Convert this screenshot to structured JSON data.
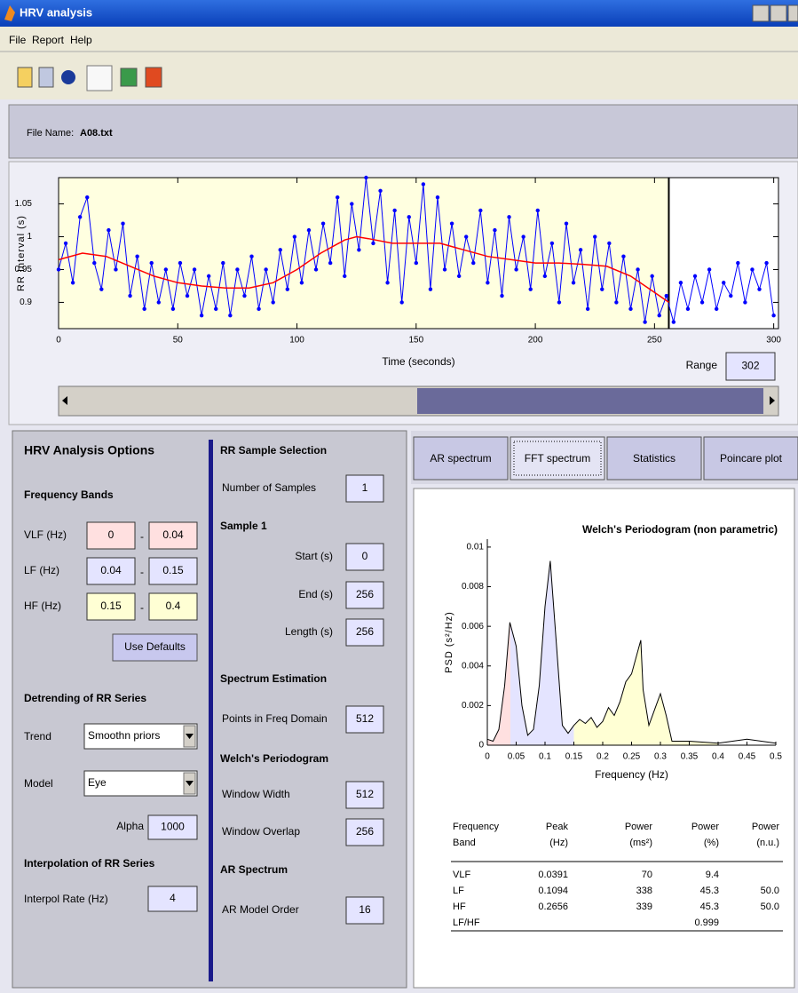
{
  "window": {
    "title": "HRV analysis",
    "menu": [
      "File",
      "Report",
      "Help"
    ]
  },
  "file": {
    "label": "File Name:",
    "name": "A08.txt"
  },
  "rr_chart": {
    "type": "line",
    "ylabel": "RR Interval (s)",
    "xlabel": "Time (seconds)",
    "xlim": [
      0,
      302
    ],
    "ylim": [
      0.86,
      1.09
    ],
    "xticks": [
      0,
      50,
      100,
      150,
      200,
      250,
      300
    ],
    "yticks": [
      0.9,
      0.95,
      1,
      1.05
    ],
    "selection": [
      0,
      256
    ],
    "selection_color": "#ffffe0",
    "range_label": "Range",
    "range": 302,
    "series": [
      {
        "color": "#0000ff",
        "x": [
          0,
          3,
          6,
          9,
          12,
          15,
          18,
          21,
          24,
          27,
          30,
          33,
          36,
          39,
          42,
          45,
          48,
          51,
          54,
          57,
          60,
          63,
          66,
          69,
          72,
          75,
          78,
          81,
          84,
          87,
          90,
          93,
          96,
          99,
          102,
          105,
          108,
          111,
          114,
          117,
          120,
          123,
          126,
          129,
          132,
          135,
          138,
          141,
          144,
          147,
          150,
          153,
          156,
          159,
          162,
          165,
          168,
          171,
          174,
          177,
          180,
          183,
          186,
          189,
          192,
          195,
          198,
          201,
          204,
          207,
          210,
          213,
          216,
          219,
          222,
          225,
          228,
          231,
          234,
          237,
          240,
          243,
          246,
          249,
          252,
          255,
          258,
          261,
          264,
          267,
          270,
          273,
          276,
          279,
          282,
          285,
          288,
          291,
          294,
          297,
          300
        ],
        "values": [
          0.95,
          0.99,
          0.93,
          1.03,
          1.06,
          0.96,
          0.92,
          1.01,
          0.95,
          1.02,
          0.91,
          0.97,
          0.89,
          0.96,
          0.9,
          0.95,
          0.89,
          0.96,
          0.91,
          0.95,
          0.88,
          0.94,
          0.89,
          0.96,
          0.88,
          0.95,
          0.91,
          0.97,
          0.89,
          0.95,
          0.9,
          0.98,
          0.92,
          1.0,
          0.93,
          1.01,
          0.95,
          1.02,
          0.96,
          1.06,
          0.94,
          1.05,
          0.98,
          1.09,
          0.99,
          1.07,
          0.93,
          1.04,
          0.9,
          1.03,
          0.96,
          1.08,
          0.92,
          1.06,
          0.95,
          1.02,
          0.94,
          1.0,
          0.96,
          1.04,
          0.93,
          1.01,
          0.91,
          1.03,
          0.95,
          1.0,
          0.92,
          1.04,
          0.94,
          0.99,
          0.9,
          1.02,
          0.93,
          0.98,
          0.89,
          1.0,
          0.92,
          0.99,
          0.9,
          0.97,
          0.89,
          0.95,
          0.87,
          0.94,
          0.88,
          0.91,
          0.87,
          0.93,
          0.89,
          0.94,
          0.9,
          0.95,
          0.89,
          0.93,
          0.91,
          0.96,
          0.9,
          0.95,
          0.92,
          0.96,
          0.88
        ]
      },
      {
        "color": "#ff0000",
        "x": [
          0,
          10,
          20,
          30,
          40,
          50,
          60,
          70,
          80,
          90,
          100,
          110,
          120,
          125,
          130,
          140,
          150,
          160,
          170,
          180,
          190,
          200,
          210,
          220,
          230,
          240,
          250,
          256
        ],
        "values": [
          0.965,
          0.975,
          0.97,
          0.955,
          0.94,
          0.93,
          0.925,
          0.922,
          0.922,
          0.93,
          0.95,
          0.975,
          0.995,
          1.0,
          0.997,
          0.99,
          0.99,
          0.99,
          0.98,
          0.97,
          0.965,
          0.96,
          0.96,
          0.958,
          0.955,
          0.94,
          0.915,
          0.9
        ]
      }
    ]
  },
  "options": {
    "title": "HRV Analysis Options",
    "bands_title": "Frequency Bands",
    "separator": "-",
    "bands": [
      {
        "label": "VLF (Hz)",
        "low": 0,
        "high": 0.04,
        "color": "#ffe0e0"
      },
      {
        "label": "LF (Hz)",
        "low": 0.04,
        "high": 0.15,
        "color": "#e4e4ff"
      },
      {
        "label": "HF (Hz)",
        "low": 0.15,
        "high": 0.4,
        "color": "#ffffd4"
      }
    ],
    "defaults_button": "Use Defaults",
    "detrend_title": "Detrending of RR Series",
    "trend_label": "Trend",
    "trend": "Smoothn priors",
    "model_label": "Model",
    "model": "Eye",
    "alpha_label": "Alpha",
    "alpha": 1000,
    "interp_title": "Interpolation of RR Series",
    "interp_label": "Interpol Rate (Hz)",
    "interp": 4
  },
  "sample": [
    {
      "heading": "RR Sample Selection"
    },
    {
      "label": "Number of Samples",
      "value": 1
    },
    {
      "heading": "Sample 1"
    },
    {
      "label": "Start (s)",
      "value": 0
    },
    {
      "label": "End (s)",
      "value": 256
    },
    {
      "label": "Length (s)",
      "value": 256
    },
    {
      "heading": "Spectrum Estimation"
    },
    {
      "label": "Points in Freq Domain",
      "value": 512
    },
    {
      "heading": "Welch's Periodogram"
    },
    {
      "label": "Window Width",
      "value": 512
    },
    {
      "label": "Window Overlap",
      "value": 256
    },
    {
      "heading": "AR Spectrum"
    },
    {
      "label": "AR Model Order",
      "value": 16
    }
  ],
  "tabs": [
    "AR spectrum",
    "FFT spectrum",
    "Statistics",
    "Poincare plot"
  ],
  "active_tab": 1,
  "psd_chart": {
    "type": "area",
    "title": "Welch's Periodogram (non parametric)",
    "xlabel": "Frequency (Hz)",
    "ylabel": "PSD (s²/Hz)",
    "xlim": [
      0,
      0.5
    ],
    "ylim": [
      0,
      0.0104
    ],
    "xticks": [
      0,
      0.05,
      0.1,
      0.15,
      0.2,
      0.25,
      0.3,
      0.35,
      0.4,
      0.45,
      0.5
    ],
    "yticks": [
      0,
      0.002,
      0.004,
      0.006,
      0.008,
      0.01
    ],
    "color": "#000000",
    "x": [
      0,
      0.01,
      0.02,
      0.03,
      0.039,
      0.05,
      0.06,
      0.07,
      0.08,
      0.09,
      0.1,
      0.109,
      0.12,
      0.13,
      0.14,
      0.15,
      0.16,
      0.17,
      0.18,
      0.19,
      0.2,
      0.21,
      0.22,
      0.23,
      0.24,
      0.25,
      0.266,
      0.27,
      0.28,
      0.29,
      0.3,
      0.31,
      0.32,
      0.35,
      0.4,
      0.45,
      0.5
    ],
    "values": [
      0.0003,
      0.0002,
      0.0008,
      0.003,
      0.0062,
      0.005,
      0.002,
      0.0005,
      0.0008,
      0.003,
      0.007,
      0.0093,
      0.005,
      0.001,
      0.0006,
      0.001,
      0.0013,
      0.0011,
      0.0014,
      0.0009,
      0.0012,
      0.0019,
      0.0015,
      0.0022,
      0.0032,
      0.0036,
      0.0053,
      0.0028,
      0.001,
      0.0018,
      0.0026,
      0.0015,
      0.0002,
      0.0002,
      0.0001,
      0.0003,
      0.0001
    ]
  },
  "table": {
    "header": [
      [
        "Frequency",
        "Band"
      ],
      [
        "Peak",
        "(Hz)"
      ],
      [
        "Power",
        "(ms²)"
      ],
      [
        "Power",
        "(%)"
      ],
      [
        "Power",
        "(n.u.)"
      ]
    ],
    "rows": [
      [
        "VLF",
        "0.0391",
        "70",
        "9.4",
        null
      ],
      [
        "LF",
        "0.1094",
        "338",
        "45.3",
        "50.0"
      ],
      [
        "HF",
        "0.2656",
        "339",
        "45.3",
        "50.0"
      ],
      [
        "LF/HF",
        null,
        null,
        "0.999",
        null
      ]
    ]
  }
}
